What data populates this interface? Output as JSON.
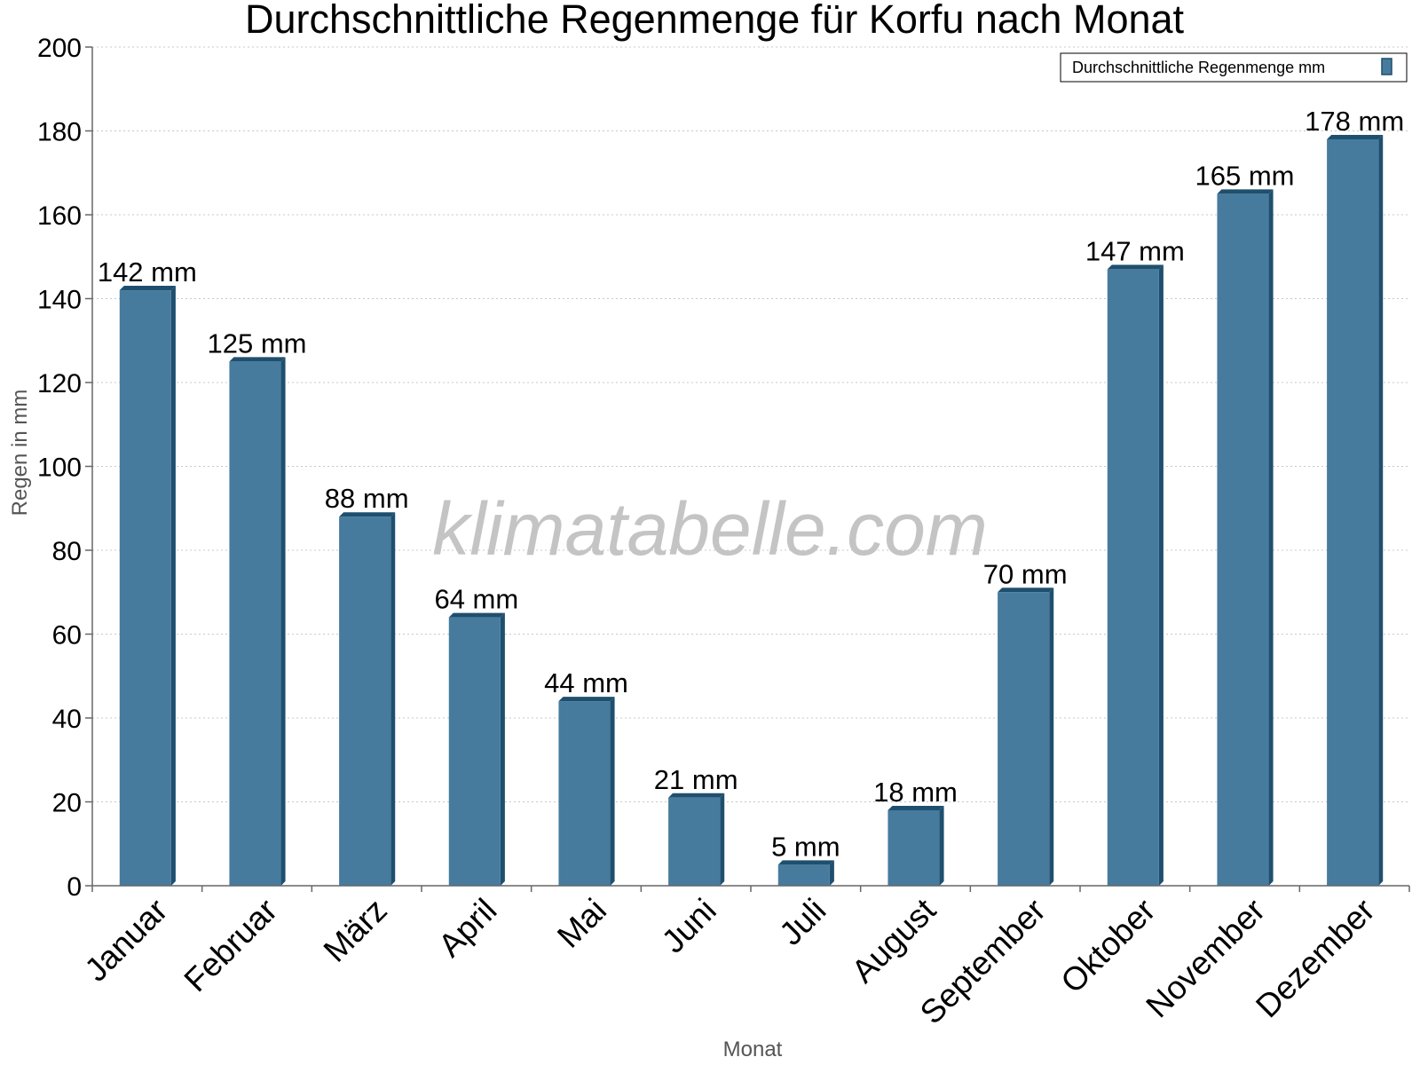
{
  "chart_data": {
    "type": "bar",
    "title": "Durchschnittliche Regenmenge für Korfu nach Monat",
    "xlabel": "Monat",
    "ylabel": "Regen in mm",
    "ylim": [
      0,
      200
    ],
    "yticks": [
      0,
      20,
      40,
      60,
      80,
      100,
      120,
      140,
      160,
      180,
      200
    ],
    "grid": true,
    "legend_position": "top-right",
    "categories": [
      "Januar",
      "Februar",
      "März",
      "April",
      "Mai",
      "Juni",
      "Juli",
      "August",
      "September",
      "Oktober",
      "November",
      "Dezember"
    ],
    "series": [
      {
        "name": "Durchschnittliche Regenmenge mm",
        "values": [
          142,
          125,
          88,
          64,
          44,
          21,
          5,
          18,
          70,
          147,
          165,
          178
        ],
        "labels": [
          "142 mm",
          "125 mm",
          "88 mm",
          "64 mm",
          "44 mm",
          "21 mm",
          "5 mm",
          "18 mm",
          "70 mm",
          "147 mm",
          "165 mm",
          "178 mm"
        ],
        "color": "#467b9d",
        "side_color": "#1f4f6e"
      }
    ]
  },
  "watermark": "klimatabelle.com"
}
